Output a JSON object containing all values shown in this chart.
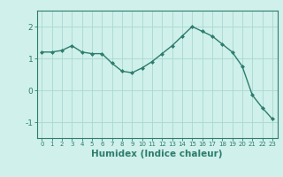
{
  "x": [
    0,
    1,
    2,
    3,
    4,
    5,
    6,
    7,
    8,
    9,
    10,
    11,
    12,
    13,
    14,
    15,
    16,
    17,
    18,
    19,
    20,
    21,
    22,
    23
  ],
  "y": [
    1.2,
    1.2,
    1.25,
    1.4,
    1.2,
    1.15,
    1.15,
    0.85,
    0.6,
    0.55,
    0.7,
    0.9,
    1.15,
    1.4,
    1.7,
    2.0,
    1.85,
    1.7,
    1.45,
    1.2,
    0.75,
    -0.15,
    -0.55,
    -0.9
  ],
  "line_color": "#2e7d6e",
  "marker": "D",
  "marker_size": 2.0,
  "bg_color": "#cff0eb",
  "grid_color": "#aad8d0",
  "xlabel": "Humidex (Indice chaleur)",
  "xlim": [
    -0.5,
    23.5
  ],
  "ylim": [
    -1.5,
    2.5
  ],
  "yticks": [
    -1,
    0,
    1,
    2
  ],
  "xticks": [
    0,
    1,
    2,
    3,
    4,
    5,
    6,
    7,
    8,
    9,
    10,
    11,
    12,
    13,
    14,
    15,
    16,
    17,
    18,
    19,
    20,
    21,
    22,
    23
  ],
  "axis_color": "#2e7d6e",
  "tick_color": "#2e7d6e",
  "xlabel_fontsize": 7.5,
  "xtick_fontsize": 5.0,
  "ytick_fontsize": 6.5
}
